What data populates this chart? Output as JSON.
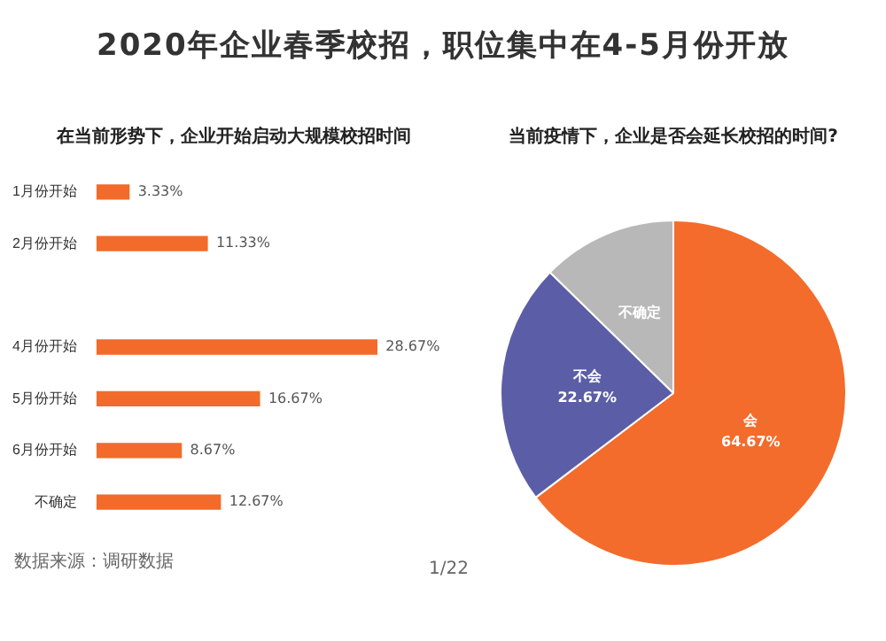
{
  "chart_data": [
    {
      "type": "bar",
      "orientation": "horizontal",
      "title": "2020年企业春季校招，职位集中在4-5月份开放",
      "subtitle": "在当前形势下，企业开始启动大规模校招时间",
      "categories": [
        "1月份开始",
        "2月份开始",
        null,
        "4月份开始",
        "5月份开始",
        "6月份开始",
        "不确定"
      ],
      "values": [
        3.33,
        11.33,
        null,
        28.67,
        16.67,
        8.67,
        12.67
      ],
      "value_labels": [
        "3.33%",
        "11.33%",
        null,
        "28.67%",
        "16.67%",
        "8.67%",
        "12.67%"
      ],
      "color": "#f26b2a",
      "tick_labels": "y",
      "legend": false,
      "annotations": [
        "数据来源：调研数据"
      ]
    },
    {
      "type": "pie",
      "title": "当前疫情下，企业是否会延长校招的时间?",
      "categories": [
        "会",
        "不会",
        "不确定"
      ],
      "values": [
        64.67,
        22.67,
        12.66
      ],
      "value_labels": [
        "64.67%",
        "22.67%",
        null
      ],
      "colors": [
        "#f36c2c",
        "#5b5ea6",
        "#b8b8b8"
      ],
      "legend": false,
      "annotations": [
        "1/22"
      ]
    }
  ]
}
